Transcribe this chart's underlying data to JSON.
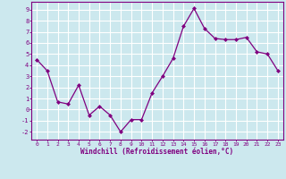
{
  "xlabel": "Windchill (Refroidissement éolien,°C)",
  "x": [
    0,
    1,
    2,
    3,
    4,
    5,
    6,
    7,
    8,
    9,
    10,
    11,
    12,
    13,
    14,
    15,
    16,
    17,
    18,
    19,
    20,
    21,
    22,
    23
  ],
  "y": [
    4.5,
    3.5,
    0.7,
    0.5,
    2.2,
    -0.5,
    0.3,
    -0.5,
    -2.0,
    -0.9,
    -0.9,
    1.5,
    3.0,
    4.6,
    7.5,
    9.1,
    7.3,
    6.4,
    6.3,
    6.3,
    6.5,
    5.2,
    5.0,
    3.5
  ],
  "xlim": [
    -0.5,
    23.5
  ],
  "ylim": [
    -2.7,
    9.7
  ],
  "yticks": [
    -2,
    -1,
    0,
    1,
    2,
    3,
    4,
    5,
    6,
    7,
    8,
    9
  ],
  "xticks": [
    0,
    1,
    2,
    3,
    4,
    5,
    6,
    7,
    8,
    9,
    10,
    11,
    12,
    13,
    14,
    15,
    16,
    17,
    18,
    19,
    20,
    21,
    22,
    23
  ],
  "line_color": "#800080",
  "marker": "D",
  "marker_size": 2.0,
  "bg_color": "#cce8ee",
  "grid_color": "#ffffff",
  "label_color": "#800080",
  "tick_color": "#800080",
  "spine_color": "#800080",
  "xlabel_bottom_color": "#9966aa"
}
